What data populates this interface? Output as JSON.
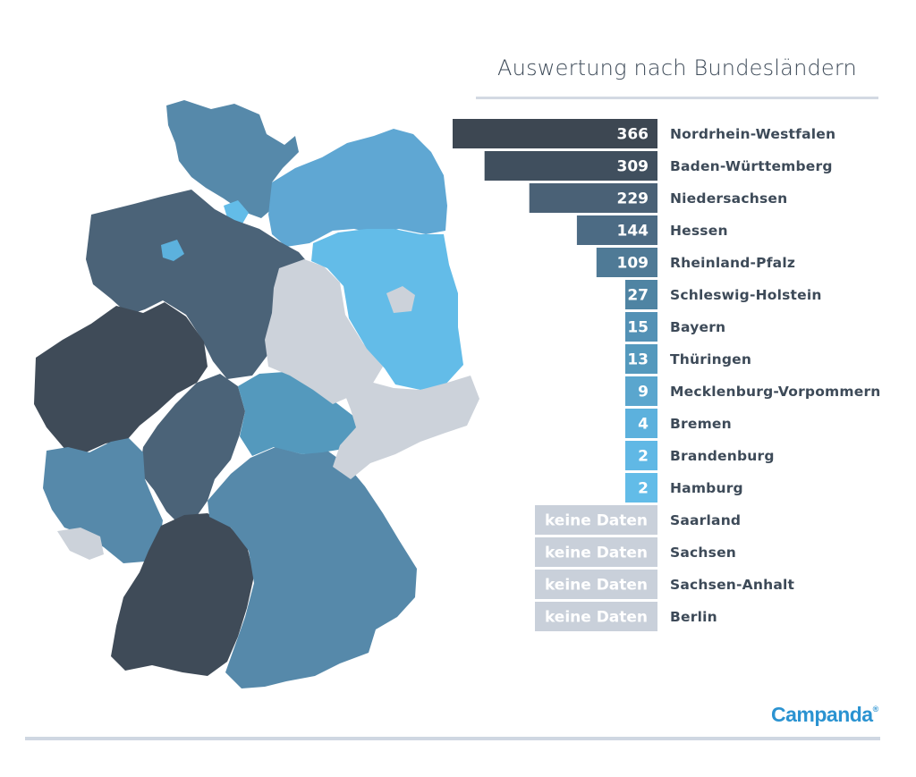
{
  "chart_data": {
    "type": "bar",
    "orientation": "horizontal",
    "title": "Auswertung nach Bundesländern",
    "categories": [
      "Nordrhein-Westfalen",
      "Baden-Württemberg",
      "Niedersachsen",
      "Hessen",
      "Rheinland-Pfalz",
      "Schleswig-Holstein",
      "Bayern",
      "Thüringen",
      "Mecklenburg-Vorpommern",
      "Bremen",
      "Brandenburg",
      "Hamburg",
      "Saarland",
      "Sachsen",
      "Sachsen-Anhalt",
      "Berlin"
    ],
    "values": [
      366,
      309,
      229,
      144,
      109,
      27,
      15,
      13,
      9,
      4,
      2,
      2,
      null,
      null,
      null,
      null
    ],
    "value_labels": [
      "366",
      "309",
      "229",
      "144",
      "109",
      "27",
      "15",
      "13",
      "9",
      "4",
      "2",
      "2",
      "keine Daten",
      "keine Daten",
      "keine Daten",
      "keine Daten"
    ],
    "no_data_label": "keine Daten",
    "xlim": [
      0,
      366
    ],
    "colors": [
      "#3d4752",
      "#404f5e",
      "#4a6176",
      "#4c6b84",
      "#4f7a96",
      "#4f84a3",
      "#5391b5",
      "#5499bd",
      "#5aa6ce",
      "#5cb1dd",
      "#60b8e5",
      "#62bce8"
    ],
    "no_data_color": "#c9d0da"
  },
  "map": {
    "name": "Germany states choropleth",
    "colors": {
      "dark": "#3f4b58",
      "darkblue": "#4b6378",
      "mid": "#5689aa",
      "light": "#5fa7d3",
      "lightest": "#63bce8",
      "none": "#ccd2da"
    }
  },
  "brand": {
    "logo_text": "Campanda",
    "logo_mark": "®",
    "color": "#2b93d1"
  }
}
